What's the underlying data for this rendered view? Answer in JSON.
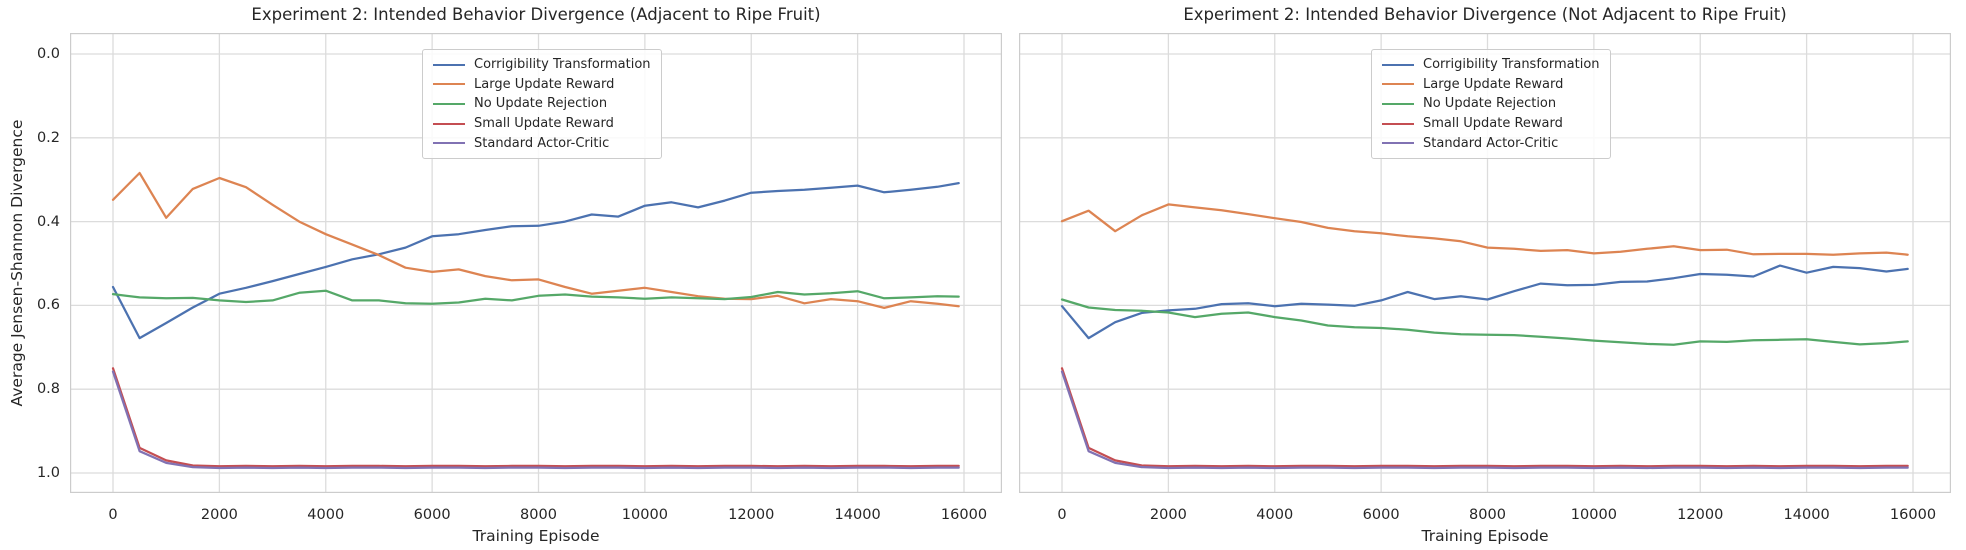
{
  "figure": {
    "ylabel": "Average Jensen-Shannon Divergence",
    "background": "#ffffff",
    "grid_color": "#dcdcdc",
    "spine_color": "#cccccc",
    "text_color": "#262626"
  },
  "legend": {
    "position": "upper center",
    "items": [
      {
        "label": "Corrigibility Transformation",
        "color": "#4C72B0"
      },
      {
        "label": "Large Update Reward",
        "color": "#DD8452"
      },
      {
        "label": "No Update Rejection",
        "color": "#55A868"
      },
      {
        "label": "Small Update Reward",
        "color": "#C44E52"
      },
      {
        "label": "Standard Actor-Critic",
        "color": "#8172B3"
      }
    ]
  },
  "chart_data": [
    {
      "type": "line",
      "title": "Experiment 2: Intended Behavior Divergence (Adjacent to Ripe Fruit)",
      "xlabel": "Training Episode",
      "ylabel": "Average Jensen-Shannon Divergence",
      "grid": true,
      "y_axis_inverted": true,
      "ylim": [
        -0.05,
        1.05
      ],
      "xlim": [
        -800,
        16720
      ],
      "x_ticks": [
        0,
        2000,
        4000,
        6000,
        8000,
        10000,
        12000,
        14000,
        16000
      ],
      "y_ticks": [
        0.0,
        0.2,
        0.4,
        0.6,
        0.8,
        1.0
      ],
      "x": [
        0,
        500,
        1000,
        1500,
        2000,
        2500,
        3000,
        3500,
        4000,
        4500,
        5000,
        5500,
        6000,
        6500,
        7000,
        7500,
        8000,
        8500,
        9000,
        9500,
        10000,
        10500,
        11000,
        11500,
        12000,
        12500,
        13000,
        13500,
        14000,
        14500,
        15000,
        15500,
        15900
      ],
      "series": [
        {
          "name": "Corrigibility Transformation",
          "color": "#4C72B0",
          "values": [
            0.556,
            0.678,
            0.642,
            0.605,
            0.572,
            0.558,
            0.542,
            0.525,
            0.508,
            0.49,
            0.478,
            0.462,
            0.435,
            0.43,
            0.42,
            0.411,
            0.41,
            0.4,
            0.383,
            0.388,
            0.362,
            0.354,
            0.366,
            0.35,
            0.331,
            0.327,
            0.324,
            0.319,
            0.314,
            0.33,
            0.324,
            0.317,
            0.308
          ]
        },
        {
          "name": "Large Update Reward",
          "color": "#DD8452",
          "values": [
            0.348,
            0.284,
            0.391,
            0.322,
            0.296,
            0.318,
            0.36,
            0.4,
            0.43,
            0.455,
            0.48,
            0.51,
            0.52,
            0.514,
            0.53,
            0.54,
            0.538,
            0.556,
            0.572,
            0.565,
            0.558,
            0.568,
            0.578,
            0.584,
            0.585,
            0.577,
            0.595,
            0.585,
            0.59,
            0.606,
            0.59,
            0.596,
            0.602
          ]
        },
        {
          "name": "No Update Rejection",
          "color": "#55A868",
          "values": [
            0.573,
            0.581,
            0.583,
            0.582,
            0.588,
            0.592,
            0.588,
            0.57,
            0.565,
            0.588,
            0.588,
            0.595,
            0.596,
            0.593,
            0.584,
            0.588,
            0.577,
            0.574,
            0.579,
            0.581,
            0.584,
            0.581,
            0.583,
            0.585,
            0.58,
            0.568,
            0.574,
            0.571,
            0.566,
            0.583,
            0.581,
            0.578,
            0.579
          ]
        },
        {
          "name": "Small Update Reward",
          "color": "#C44E52",
          "values": [
            0.75,
            0.94,
            0.97,
            0.982,
            0.984,
            0.983,
            0.984,
            0.983,
            0.984,
            0.983,
            0.983,
            0.984,
            0.983,
            0.983,
            0.984,
            0.983,
            0.983,
            0.984,
            0.983,
            0.983,
            0.984,
            0.983,
            0.984,
            0.983,
            0.983,
            0.984,
            0.983,
            0.984,
            0.983,
            0.983,
            0.984,
            0.983,
            0.983
          ]
        },
        {
          "name": "Standard Actor-Critic",
          "color": "#8172B3",
          "values": [
            0.758,
            0.948,
            0.976,
            0.986,
            0.988,
            0.987,
            0.988,
            0.987,
            0.988,
            0.987,
            0.987,
            0.988,
            0.987,
            0.987,
            0.988,
            0.987,
            0.987,
            0.988,
            0.987,
            0.987,
            0.988,
            0.987,
            0.988,
            0.987,
            0.987,
            0.988,
            0.987,
            0.988,
            0.987,
            0.987,
            0.988,
            0.987,
            0.987
          ]
        }
      ]
    },
    {
      "type": "line",
      "title": "Experiment 2: Intended Behavior Divergence (Not Adjacent to Ripe Fruit)",
      "xlabel": "Training Episode",
      "ylabel": "Average Jensen-Shannon Divergence",
      "grid": true,
      "y_axis_inverted": true,
      "ylim": [
        -0.05,
        1.05
      ],
      "xlim": [
        -800,
        16720
      ],
      "x_ticks": [
        0,
        2000,
        4000,
        6000,
        8000,
        10000,
        12000,
        14000,
        16000
      ],
      "y_ticks": [
        0.0,
        0.2,
        0.4,
        0.6,
        0.8,
        1.0
      ],
      "x": [
        0,
        500,
        1000,
        1500,
        2000,
        2500,
        3000,
        3500,
        4000,
        4500,
        5000,
        5500,
        6000,
        6500,
        7000,
        7500,
        8000,
        8500,
        9000,
        9500,
        10000,
        10500,
        11000,
        11500,
        12000,
        12500,
        13000,
        13500,
        14000,
        14500,
        15000,
        15500,
        15900
      ],
      "series": [
        {
          "name": "Corrigibility Transformation",
          "color": "#4C72B0",
          "values": [
            0.602,
            0.678,
            0.64,
            0.618,
            0.612,
            0.608,
            0.597,
            0.595,
            0.602,
            0.596,
            0.598,
            0.601,
            0.588,
            0.568,
            0.585,
            0.578,
            0.586,
            0.566,
            0.548,
            0.552,
            0.551,
            0.544,
            0.543,
            0.535,
            0.525,
            0.527,
            0.531,
            0.505,
            0.522,
            0.508,
            0.511,
            0.519,
            0.513
          ]
        },
        {
          "name": "Large Update Reward",
          "color": "#DD8452",
          "values": [
            0.399,
            0.374,
            0.423,
            0.385,
            0.359,
            0.366,
            0.373,
            0.382,
            0.392,
            0.401,
            0.415,
            0.423,
            0.428,
            0.435,
            0.44,
            0.447,
            0.462,
            0.465,
            0.47,
            0.468,
            0.476,
            0.472,
            0.465,
            0.459,
            0.468,
            0.467,
            0.478,
            0.477,
            0.477,
            0.479,
            0.476,
            0.474,
            0.479
          ]
        },
        {
          "name": "No Update Rejection",
          "color": "#55A868",
          "values": [
            0.586,
            0.605,
            0.611,
            0.613,
            0.617,
            0.628,
            0.62,
            0.617,
            0.628,
            0.636,
            0.648,
            0.652,
            0.654,
            0.658,
            0.665,
            0.669,
            0.67,
            0.671,
            0.675,
            0.679,
            0.684,
            0.688,
            0.692,
            0.694,
            0.686,
            0.687,
            0.683,
            0.682,
            0.681,
            0.687,
            0.693,
            0.69,
            0.686
          ]
        },
        {
          "name": "Small Update Reward",
          "color": "#C44E52",
          "values": [
            0.75,
            0.94,
            0.97,
            0.982,
            0.984,
            0.983,
            0.984,
            0.983,
            0.984,
            0.983,
            0.983,
            0.984,
            0.983,
            0.983,
            0.984,
            0.983,
            0.983,
            0.984,
            0.983,
            0.983,
            0.984,
            0.983,
            0.984,
            0.983,
            0.983,
            0.984,
            0.983,
            0.984,
            0.983,
            0.983,
            0.984,
            0.983,
            0.983
          ]
        },
        {
          "name": "Standard Actor-Critic",
          "color": "#8172B3",
          "values": [
            0.758,
            0.948,
            0.976,
            0.986,
            0.988,
            0.987,
            0.988,
            0.987,
            0.988,
            0.987,
            0.987,
            0.988,
            0.987,
            0.987,
            0.988,
            0.987,
            0.987,
            0.988,
            0.987,
            0.987,
            0.988,
            0.987,
            0.988,
            0.987,
            0.987,
            0.988,
            0.987,
            0.988,
            0.987,
            0.987,
            0.988,
            0.987,
            0.987
          ]
        }
      ]
    }
  ]
}
